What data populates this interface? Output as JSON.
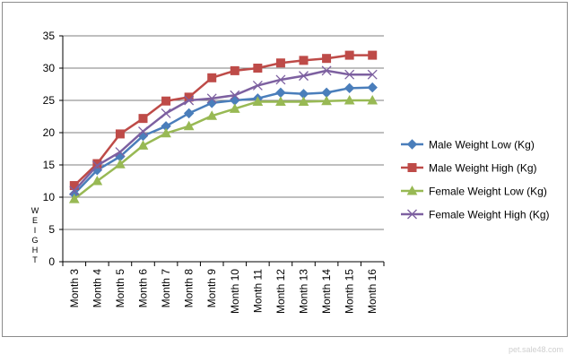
{
  "watermark": "pet.sale48.com",
  "colors": {
    "frame": "#8c8c8c",
    "axis": "#000000",
    "gridline": "#7f7f7f",
    "background": "#ffffff",
    "watermark": "#cfcfcf"
  },
  "chart_data": {
    "type": "line",
    "title": "",
    "xlabel": "",
    "ylabel": "WEIGHT",
    "ylim": [
      0,
      35
    ],
    "yticks": [
      0,
      5,
      10,
      15,
      20,
      25,
      30,
      35
    ],
    "grid": "horizontal major gridlines",
    "legend_position": "right",
    "categories": [
      "Month 3",
      "Month 4",
      "Month 5",
      "Month 6",
      "Month 7",
      "Month 8",
      "Month 9",
      "Month 10",
      "Month 11",
      "Month 12",
      "Month 13",
      "Month 14",
      "Month 15",
      "Month 16"
    ],
    "series": [
      {
        "name": "Male Weight Low (Kg)",
        "color": "#4a7ebb",
        "marker": "diamond",
        "values": [
          10.5,
          14.2,
          16.3,
          19.5,
          21,
          23,
          24.6,
          25,
          25.3,
          26.2,
          26,
          26.2,
          26.9,
          27
        ]
      },
      {
        "name": "Male Weight High (Kg)",
        "color": "#be4b48",
        "marker": "square",
        "values": [
          11.8,
          15.2,
          19.8,
          22.2,
          24.9,
          25.5,
          28.5,
          29.6,
          30,
          30.8,
          31.2,
          31.5,
          32,
          32
        ]
      },
      {
        "name": "Female Weight Low (Kg)",
        "color": "#98b954",
        "marker": "triangle",
        "values": [
          9.7,
          12.5,
          15.1,
          18,
          19.9,
          21,
          22.6,
          23.7,
          24.8,
          24.8,
          24.8,
          24.9,
          25,
          25
        ]
      },
      {
        "name": "Female Weight High (Kg)",
        "color": "#7d60a0",
        "marker": "x",
        "values": [
          11,
          14.9,
          17,
          20.2,
          23,
          25,
          25.3,
          25.8,
          27.3,
          28.2,
          28.8,
          29.6,
          29,
          29
        ]
      }
    ]
  }
}
